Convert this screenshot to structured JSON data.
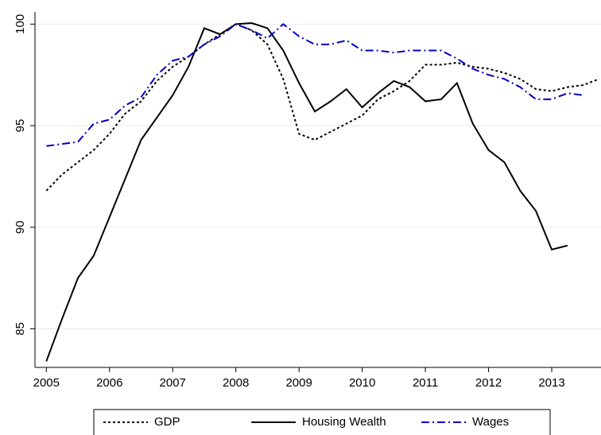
{
  "chart_data": {
    "type": "line",
    "x": [
      2005,
      2005.25,
      2005.5,
      2005.75,
      2006,
      2006.25,
      2006.5,
      2006.75,
      2007,
      2007.25,
      2007.5,
      2007.75,
      2008,
      2008.25,
      2008.5,
      2008.75,
      2009,
      2009.25,
      2009.5,
      2009.75,
      2010,
      2010.25,
      2010.5,
      2010.75,
      2011,
      2011.25,
      2011.5,
      2011.75,
      2012,
      2012.25,
      2012.5,
      2012.75,
      2013,
      2013.25,
      2013.5,
      2013.75
    ],
    "series": [
      {
        "name": "GDP",
        "color": "#000000",
        "dash": "3,3",
        "values": [
          91.8,
          92.6,
          93.2,
          93.8,
          94.6,
          95.6,
          96.2,
          97.2,
          97.9,
          98.4,
          99.0,
          99.5,
          100,
          99.7,
          99.0,
          97.3,
          94.6,
          94.3,
          94.7,
          95.1,
          95.5,
          96.3,
          96.7,
          97.2,
          98.0,
          98.0,
          98.1,
          97.9,
          97.8,
          97.6,
          97.3,
          96.8,
          96.7,
          96.9,
          97.0,
          97.3
        ]
      },
      {
        "name": "Housing Wealth",
        "color": "#000000",
        "dash": "none",
        "values": [
          83.4,
          85.5,
          87.5,
          88.6,
          90.5,
          92.4,
          94.3,
          95.4,
          96.5,
          97.9,
          99.8,
          99.5,
          100.0,
          100.05,
          99.8,
          98.7,
          97.1,
          95.7,
          96.2,
          96.8,
          95.9,
          96.6,
          97.2,
          96.9,
          96.2,
          96.3,
          97.1,
          95.1,
          93.8,
          93.2,
          91.8,
          90.8,
          88.9,
          89.1,
          null,
          null
        ]
      },
      {
        "name": "Wages",
        "color": "#0000c0",
        "dash": "10,4,2,4",
        "values": [
          94.0,
          94.1,
          94.2,
          95.1,
          95.3,
          96.0,
          96.4,
          97.5,
          98.2,
          98.4,
          99.0,
          99.4,
          100,
          99.7,
          99.3,
          100.0,
          99.4,
          99.0,
          99.0,
          99.2,
          98.7,
          98.7,
          98.6,
          98.7,
          98.7,
          98.7,
          98.3,
          97.8,
          97.5,
          97.3,
          96.9,
          96.3,
          96.3,
          96.6,
          96.5,
          null
        ]
      }
    ],
    "xlim": [
      2004.82,
      2013.78
    ],
    "xticks": [
      2005,
      2006,
      2007,
      2008,
      2009,
      2010,
      2011,
      2012,
      2013
    ],
    "ylim": [
      83.1,
      100.6
    ],
    "yticks": [
      85,
      90,
      95,
      100
    ],
    "grid": true,
    "legend": "bottom"
  }
}
